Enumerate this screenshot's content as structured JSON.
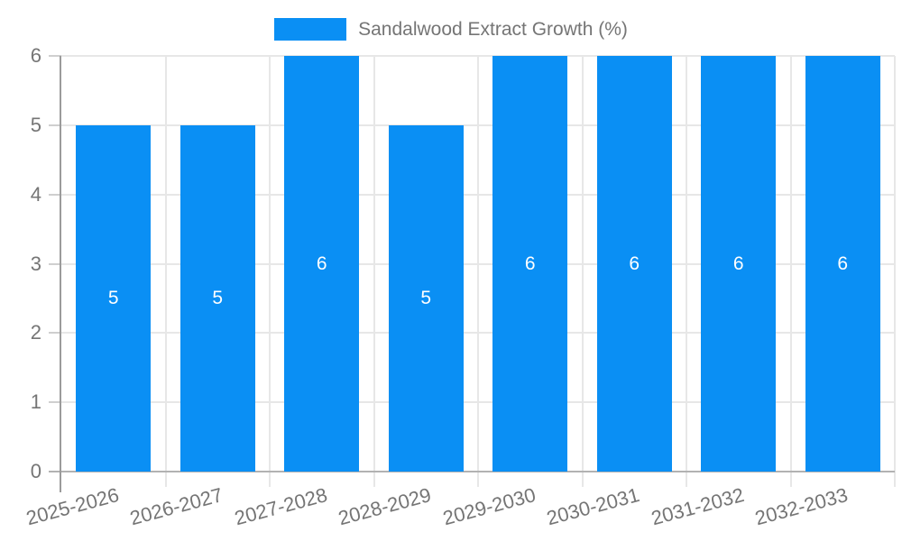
{
  "legend": {
    "label": "Sandalwood Extract Growth (%)"
  },
  "colors": {
    "bar": "#0a8ff4",
    "grid": "#e7e7e7",
    "axis": "#9b9b9b",
    "baseline": "#b2b2b2",
    "tick": "#cfcfcf",
    "axis_text": "#757575",
    "bar_label": "#ffffff",
    "background": "#ffffff"
  },
  "chart_data": {
    "type": "bar",
    "title": "Sandalwood Extract Growth (%)",
    "categories": [
      "2025-2026",
      "2026-2027",
      "2027-2028",
      "2028-2029",
      "2029-2030",
      "2030-2031",
      "2031-2032",
      "2032-2033"
    ],
    "values": [
      5,
      5,
      6,
      5,
      6,
      6,
      6,
      6
    ],
    "series_name": "Sandalwood Extract Growth (%)",
    "xlabel": "",
    "ylabel": "",
    "ylim": [
      0,
      6
    ],
    "yticks": [
      0,
      1,
      2,
      3,
      4,
      5,
      6
    ],
    "grid": true,
    "bar_value_labels": true,
    "legend_position": "top-center",
    "xtick_rotation_deg": -15
  }
}
